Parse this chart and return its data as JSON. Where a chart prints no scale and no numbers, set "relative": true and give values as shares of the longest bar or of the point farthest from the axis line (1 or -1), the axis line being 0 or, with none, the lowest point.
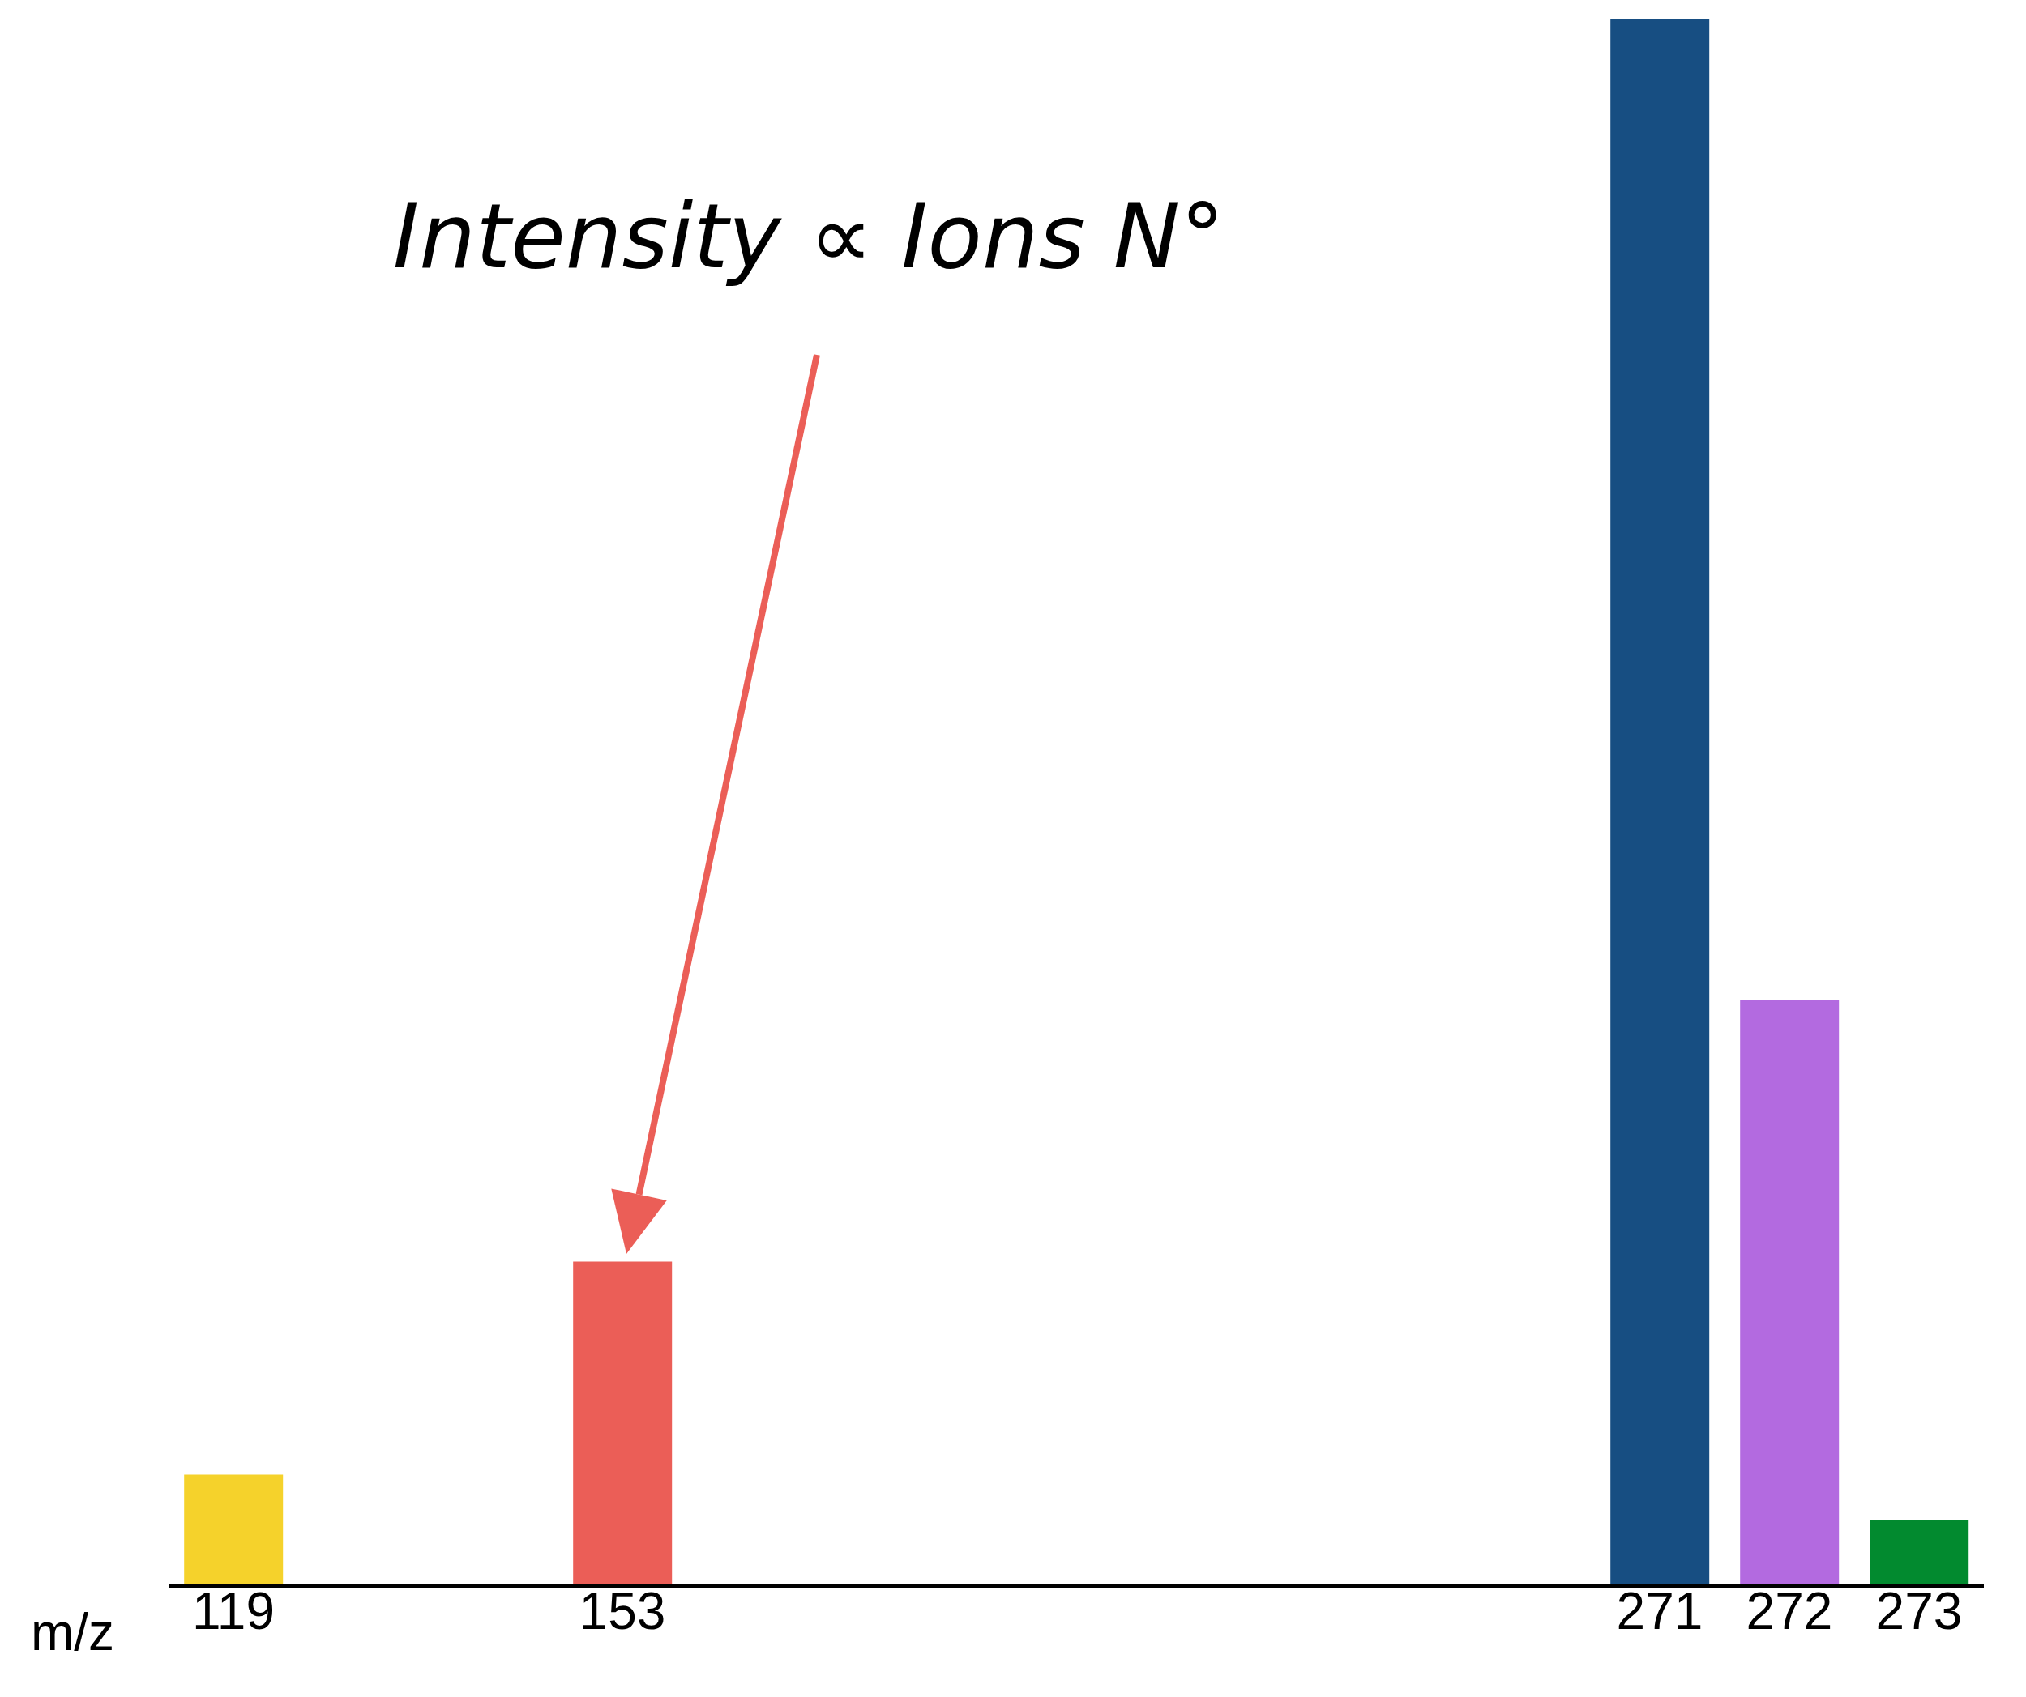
{
  "chart_data": {
    "type": "bar",
    "xlabel": "m/z",
    "relative": true,
    "categories": [
      "119",
      null,
      null,
      "153",
      null,
      null,
      null,
      null,
      null,
      null,
      null,
      "271",
      "272",
      "273"
    ],
    "values": [
      0.071,
      null,
      null,
      0.207,
      null,
      null,
      null,
      null,
      null,
      null,
      null,
      1,
      0.374,
      0.042
    ],
    "colors": [
      "#f5d22b",
      null,
      null,
      "#eb5e57",
      null,
      null,
      null,
      null,
      null,
      null,
      null,
      "#174e82",
      "#b36ae0",
      "#028a2f"
    ],
    "annotations": [
      "Intensity ∝ Ions N°"
    ]
  }
}
